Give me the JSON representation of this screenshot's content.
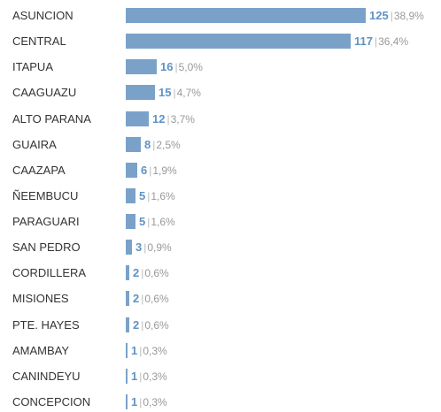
{
  "colors": {
    "bar": "#7aa2c9",
    "value_text": "#5f93c4",
    "label_text": "#333333",
    "percent_text": "#999999",
    "separator": "#bbbbbb"
  },
  "chart_data": {
    "type": "bar",
    "orientation": "horizontal",
    "title": "",
    "xlabel": "",
    "ylabel": "",
    "grid": false,
    "separator_text": "|",
    "categories": [
      "ASUNCION",
      "CENTRAL",
      "ITAPUA",
      "CAAGUAZU",
      "ALTO PARANA",
      "GUAIRA",
      "CAAZAPA",
      "ÑEEMBUCU",
      "PARAGUARI",
      "SAN PEDRO",
      "CORDILLERA",
      "MISIONES",
      "PTE. HAYES",
      "AMAMBAY",
      "CANINDEYU",
      "CONCEPCION"
    ],
    "values": [
      125,
      117,
      16,
      15,
      12,
      8,
      6,
      5,
      5,
      3,
      2,
      2,
      2,
      1,
      1,
      1
    ],
    "value_labels": [
      "125",
      "117",
      "16",
      "15",
      "12",
      "8",
      "6",
      "5",
      "5",
      "3",
      "2",
      "2",
      "2",
      "1",
      "1",
      "1"
    ],
    "percent_labels": [
      "38,9%",
      "36,4%",
      "5,0%",
      "4,7%",
      "3,7%",
      "2,5%",
      "1,9%",
      "1,6%",
      "1,6%",
      "0,9%",
      "0,6%",
      "0,6%",
      "0,6%",
      "0,3%",
      "0,3%",
      "0,3%"
    ],
    "xlim": [
      0,
      125
    ]
  }
}
